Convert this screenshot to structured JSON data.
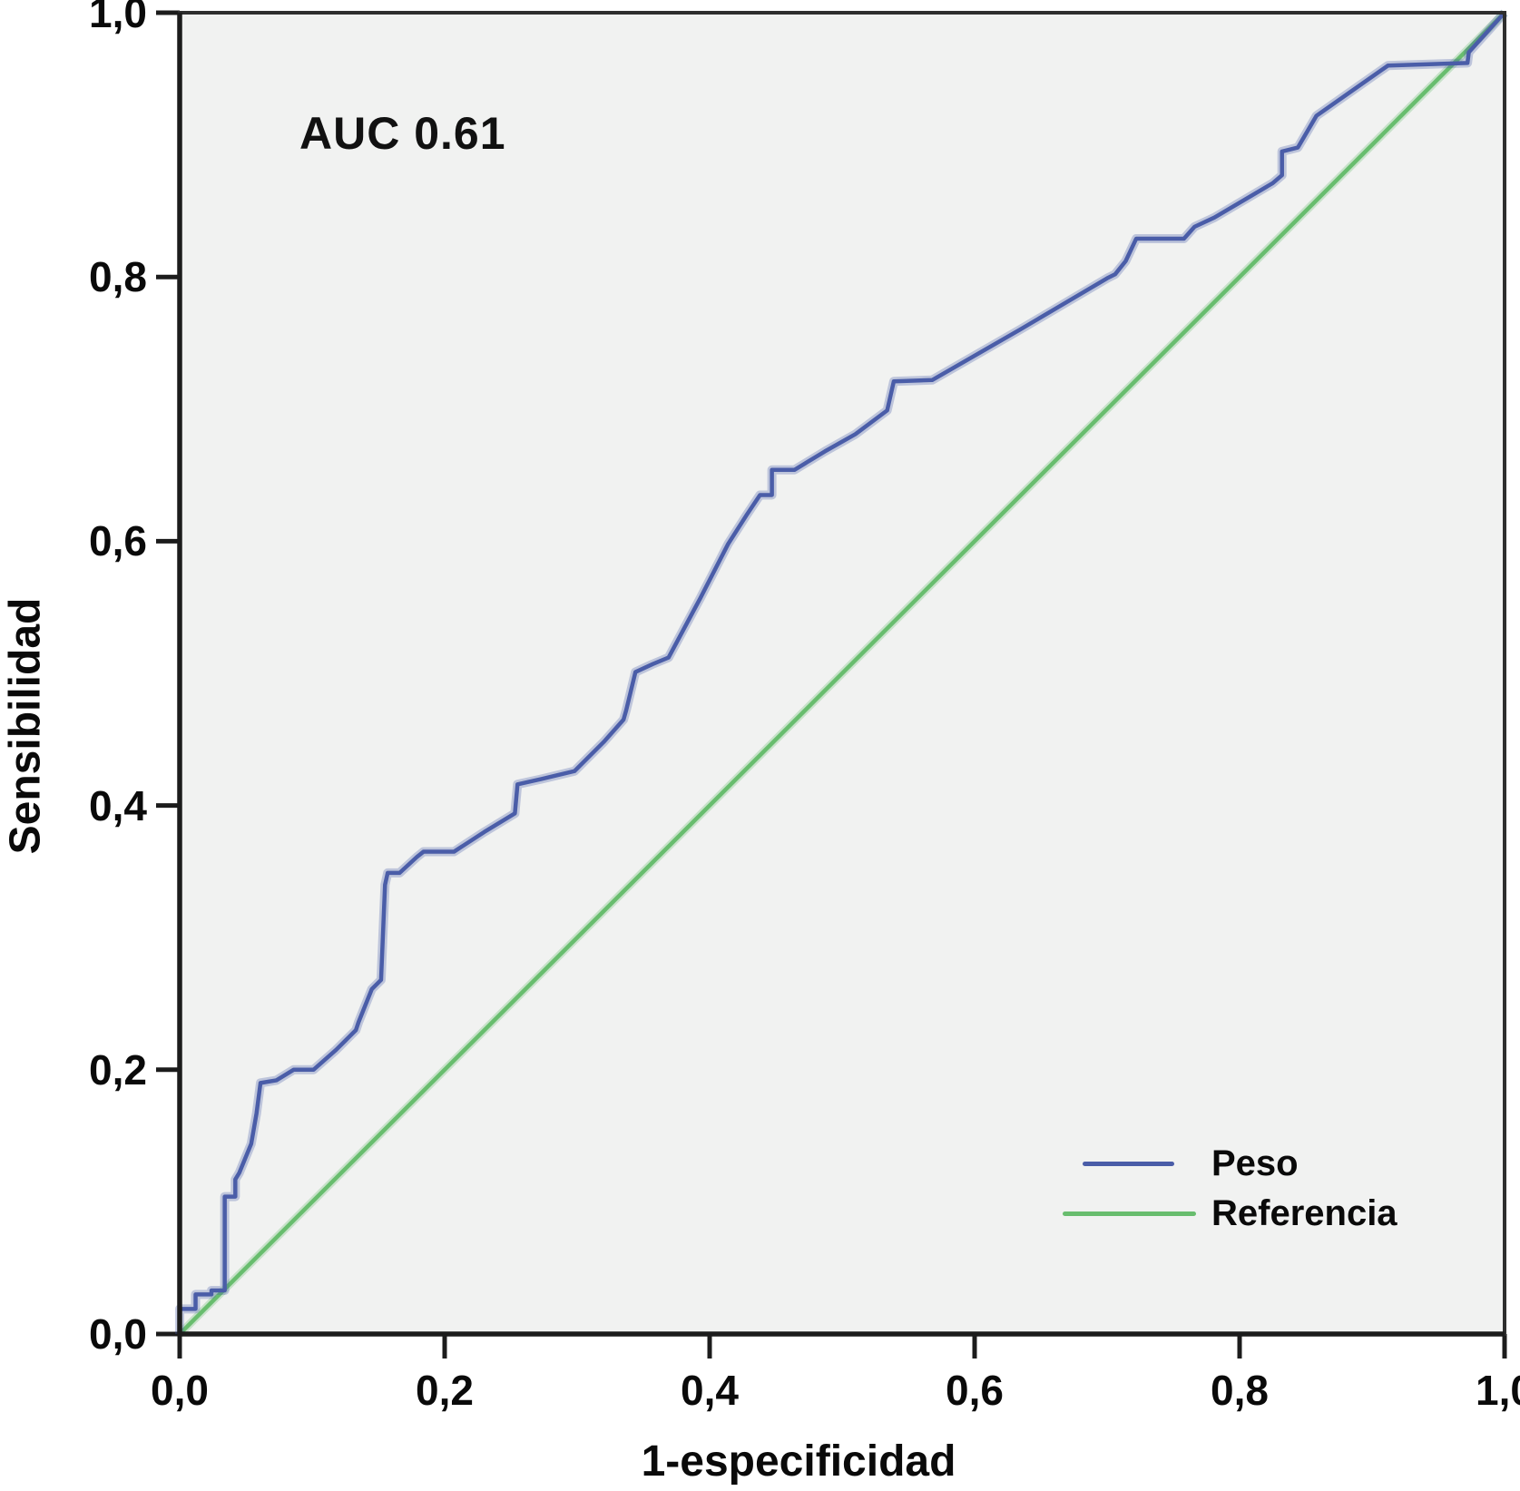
{
  "chart": {
    "colors": {
      "plot_bg": "#f1f2f1",
      "border": "#2e2e2e",
      "axis": "#1c1c1c",
      "tick": "#1c1c1c",
      "peso": "#4a5da8",
      "peso_halo": "rgba(74,93,168,0.30)",
      "referencia": "#68bd6e",
      "referencia_halo": "rgba(104,189,110,0.30)"
    }
  },
  "chart_data": {
    "type": "line",
    "title": "",
    "annotation": "AUC 0.61",
    "xlabel": "1-especificidad",
    "ylabel": "Sensibilidad",
    "xlim": [
      0,
      1
    ],
    "ylim": [
      0,
      1
    ],
    "grid": false,
    "legend_position": "lower-right",
    "tick_values": [
      0,
      0.2,
      0.4,
      0.6,
      0.8,
      1.0
    ],
    "x_ticks": [
      "0,0",
      "0,2",
      "0,4",
      "0,6",
      "0,8",
      "1,0"
    ],
    "y_ticks": [
      "0,0",
      "0,2",
      "0,4",
      "0,6",
      "0,8",
      "1,0"
    ],
    "series": [
      {
        "name": "Peso",
        "color": "#4a5da8",
        "points": [
          [
            0.0,
            0.0
          ],
          [
            0.0,
            0.019
          ],
          [
            0.012,
            0.019
          ],
          [
            0.012,
            0.03
          ],
          [
            0.024,
            0.03
          ],
          [
            0.024,
            0.033
          ],
          [
            0.034,
            0.033
          ],
          [
            0.034,
            0.104
          ],
          [
            0.042,
            0.104
          ],
          [
            0.042,
            0.117
          ],
          [
            0.045,
            0.122
          ],
          [
            0.054,
            0.144
          ],
          [
            0.058,
            0.167
          ],
          [
            0.061,
            0.19
          ],
          [
            0.073,
            0.192
          ],
          [
            0.086,
            0.2
          ],
          [
            0.101,
            0.2
          ],
          [
            0.118,
            0.215
          ],
          [
            0.133,
            0.23
          ],
          [
            0.135,
            0.236
          ],
          [
            0.145,
            0.261
          ],
          [
            0.152,
            0.268
          ],
          [
            0.155,
            0.34
          ],
          [
            0.157,
            0.349
          ],
          [
            0.166,
            0.349
          ],
          [
            0.179,
            0.361
          ],
          [
            0.184,
            0.365
          ],
          [
            0.207,
            0.365
          ],
          [
            0.23,
            0.38
          ],
          [
            0.253,
            0.394
          ],
          [
            0.255,
            0.416
          ],
          [
            0.273,
            0.42
          ],
          [
            0.298,
            0.426
          ],
          [
            0.32,
            0.448
          ],
          [
            0.335,
            0.465
          ],
          [
            0.337,
            0.472
          ],
          [
            0.344,
            0.501
          ],
          [
            0.357,
            0.507
          ],
          [
            0.369,
            0.512
          ],
          [
            0.393,
            0.557
          ],
          [
            0.414,
            0.598
          ],
          [
            0.428,
            0.62
          ],
          [
            0.438,
            0.635
          ],
          [
            0.447,
            0.635
          ],
          [
            0.447,
            0.654
          ],
          [
            0.464,
            0.654
          ],
          [
            0.487,
            0.668
          ],
          [
            0.51,
            0.681
          ],
          [
            0.534,
            0.699
          ],
          [
            0.539,
            0.721
          ],
          [
            0.568,
            0.722
          ],
          [
            0.634,
            0.76
          ],
          [
            0.7,
            0.799
          ],
          [
            0.706,
            0.802
          ],
          [
            0.714,
            0.812
          ],
          [
            0.722,
            0.829
          ],
          [
            0.758,
            0.829
          ],
          [
            0.766,
            0.838
          ],
          [
            0.781,
            0.845
          ],
          [
            0.825,
            0.871
          ],
          [
            0.832,
            0.877
          ],
          [
            0.832,
            0.895
          ],
          [
            0.844,
            0.898
          ],
          [
            0.858,
            0.922
          ],
          [
            0.885,
            0.941
          ],
          [
            0.912,
            0.96
          ],
          [
            0.972,
            0.962
          ],
          [
            0.973,
            0.97
          ],
          [
            1.0,
            1.0
          ]
        ]
      },
      {
        "name": "Referencia",
        "color": "#68bd6e",
        "points": [
          [
            0,
            0
          ],
          [
            1,
            1
          ]
        ]
      }
    ]
  }
}
